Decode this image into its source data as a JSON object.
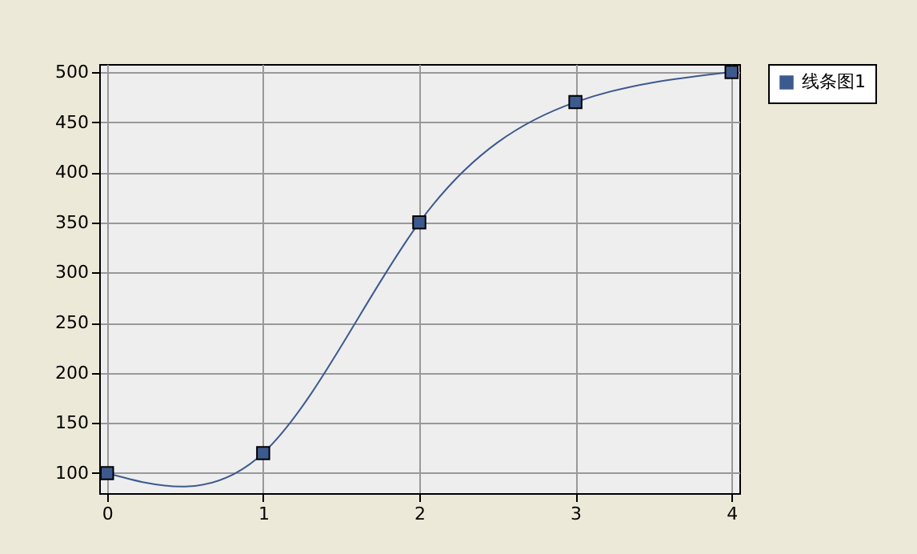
{
  "chart_data": {
    "type": "line",
    "x": [
      0,
      1,
      2,
      3,
      4
    ],
    "series": [
      {
        "name": "线条图1",
        "color": "#3d5a8f",
        "values": [
          100,
          120,
          350,
          470,
          500
        ]
      }
    ],
    "xlim": [
      -0.05,
      4.05
    ],
    "xticks": [
      0,
      1,
      2,
      3,
      4
    ],
    "ylim": [
      80,
      508
    ],
    "yticks": [
      100,
      150,
      200,
      250,
      300,
      350,
      400,
      450,
      500
    ],
    "grid": true,
    "legend": "top right",
    "marker": "square",
    "line_style": "solid"
  }
}
